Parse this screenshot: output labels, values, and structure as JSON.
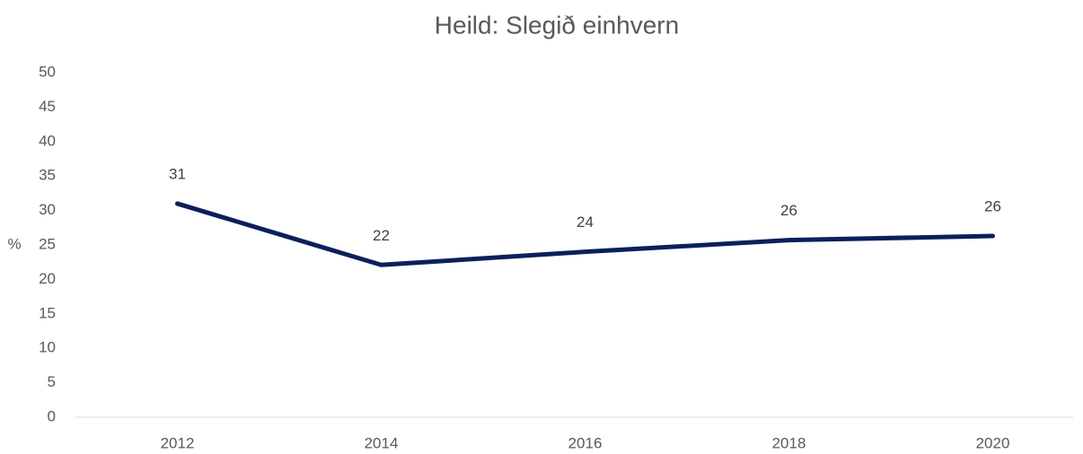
{
  "chart_data": {
    "type": "line",
    "title": "Heild: Slegið einhvern",
    "categories": [
      "2012",
      "2014",
      "2016",
      "2018",
      "2020"
    ],
    "values": [
      31,
      22.1,
      24,
      25.7,
      26.3
    ],
    "value_labels": [
      "31",
      "22",
      "24",
      "26",
      "26"
    ],
    "color": "#0c1f5b",
    "ylabel": "%",
    "ylim": [
      0,
      50
    ],
    "yticks": [
      0,
      5,
      10,
      15,
      20,
      25,
      30,
      35,
      40,
      45,
      50
    ],
    "grid": false
  }
}
